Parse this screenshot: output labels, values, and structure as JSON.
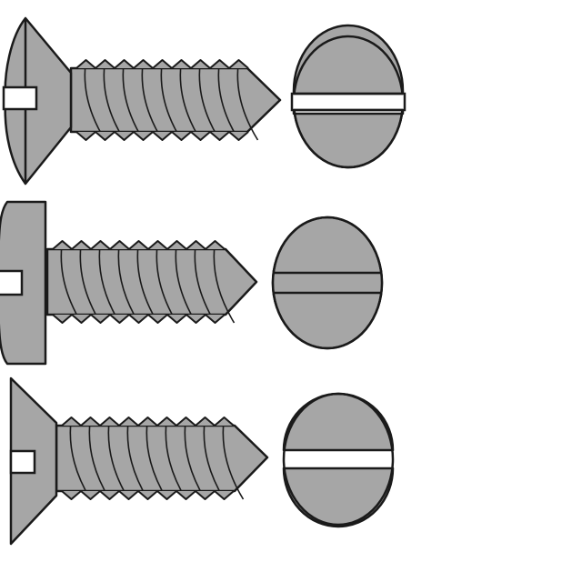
{
  "colors": {
    "fill": "#a6a6a6",
    "stroke": "#1a1a1a",
    "slot": "#ffffff",
    "background": "#ffffff"
  },
  "screws": [
    {
      "id": "oval-head",
      "head_type": "oval-countersunk",
      "drive": "slotted",
      "icon": "oval-head-screw-icon"
    },
    {
      "id": "pan-head",
      "head_type": "pan",
      "drive": "slotted",
      "icon": "pan-head-screw-icon"
    },
    {
      "id": "flat-head",
      "head_type": "flat-countersunk",
      "drive": "slotted",
      "icon": "flat-head-screw-icon"
    }
  ]
}
